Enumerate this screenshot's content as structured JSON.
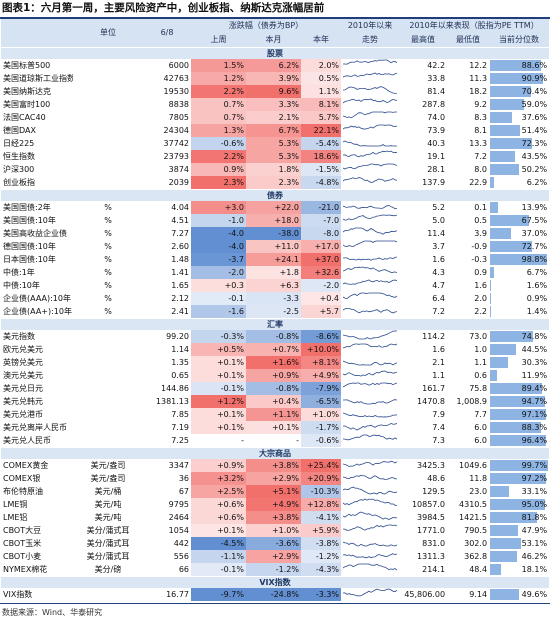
{
  "title": "图表1：六月第一周，主要风险资产中，创业板指、纳斯达克涨幅居前",
  "header": {
    "unit": "单位",
    "date": "6/8",
    "change": "涨跌幅（债券为BP）",
    "week": "上周",
    "month": "本月",
    "year": "本年",
    "trend": [
      "2010年以来",
      "走势"
    ],
    "perf": "2010年以来表现（股指为PE TTM）",
    "high": "最高值",
    "low": "最低值",
    "pct": "当前分位数"
  },
  "sections": [
    {
      "name": "股票",
      "rows": [
        {
          "name": "美国标普500",
          "value": "6000",
          "week": "1.5%",
          "month": "6.2%",
          "year": "2.0%",
          "high": "42.2",
          "low": "12.2",
          "pct": "88.6%"
        },
        {
          "name": "美国道琼斯工业指数",
          "value": "42763",
          "week": "1.2%",
          "month": "3.9%",
          "year": "0.5%",
          "high": "33.8",
          "low": "11.3",
          "pct": "90.9%"
        },
        {
          "name": "美国纳斯达克",
          "value": "19530",
          "week": "2.2%",
          "month": "9.6%",
          "year": "1.1%",
          "high": "81.4",
          "low": "18.2",
          "pct": "70.4%"
        },
        {
          "name": "美国富时100",
          "value": "8838",
          "week": "0.7%",
          "month": "3.3%",
          "year": "8.1%",
          "high": "287.8",
          "low": "9.2",
          "pct": "59.0%"
        },
        {
          "name": "法国CAC40",
          "value": "7805",
          "week": "0.7%",
          "month": "2.1%",
          "year": "5.7%",
          "high": "74.0",
          "low": "8.3",
          "pct": "37.6%"
        },
        {
          "name": "德国DAX",
          "value": "24304",
          "week": "1.3%",
          "month": "6.7%",
          "year": "22.1%",
          "high": "73.9",
          "low": "8.1",
          "pct": "51.4%"
        },
        {
          "name": "日经225",
          "value": "37742",
          "week": "-0.6%",
          "month": "5.3%",
          "year": "-5.4%",
          "high": "40.3",
          "low": "13.3",
          "pct": "72.3%"
        },
        {
          "name": "恒生指数",
          "value": "23793",
          "week": "2.2%",
          "month": "5.3%",
          "year": "18.6%",
          "high": "19.1",
          "low": "7.2",
          "pct": "43.5%"
        },
        {
          "name": "沪深300",
          "value": "3874",
          "week": "0.9%",
          "month": "1.8%",
          "year": "-1.5%",
          "high": "28.1",
          "low": "8.0",
          "pct": "50.2%"
        },
        {
          "name": "创业板指",
          "value": "2039",
          "week": "2.3%",
          "month": "2.3%",
          "year": "-4.8%",
          "high": "137.9",
          "low": "22.9",
          "pct": "6.2%"
        }
      ]
    },
    {
      "name": "债券",
      "rows": [
        {
          "name": "美国国债:2年",
          "unit": "%",
          "value": "4.04",
          "week": "+3.0",
          "month": "+22.0",
          "year": "-21.0",
          "high": "5.2",
          "low": "0.1",
          "pct": "13.9%"
        },
        {
          "name": "美国国债:10年",
          "unit": "%",
          "value": "4.51",
          "week": "-1.0",
          "month": "+18.0",
          "year": "-7.0",
          "high": "5.0",
          "low": "0.5",
          "pct": "67.5%"
        },
        {
          "name": "美国高收益企业债",
          "unit": "%",
          "value": "7.27",
          "week": "-4.0",
          "month": "-38.0",
          "year": "-8.0",
          "high": "11.4",
          "low": "3.9",
          "pct": "37.0%"
        },
        {
          "name": "德国国债:10年",
          "unit": "%",
          "value": "2.60",
          "week": "-4.0",
          "month": "+11.0",
          "year": "+17.0",
          "high": "3.7",
          "low": "-0.9",
          "pct": "72.7%"
        },
        {
          "name": "日本国债:10年",
          "unit": "%",
          "value": "1.48",
          "week": "-3.7",
          "month": "+24.1",
          "year": "+37.0",
          "high": "1.6",
          "low": "-0.3",
          "pct": "98.8%"
        },
        {
          "name": "中债:1年",
          "unit": "%",
          "value": "1.41",
          "week": "-2.0",
          "month": "+1.8",
          "year": "+32.6",
          "high": "4.3",
          "low": "0.9",
          "pct": "6.7%"
        },
        {
          "name": "中债:10年",
          "unit": "%",
          "value": "1.65",
          "week": "+0.3",
          "month": "+6.3",
          "year": "-2.0",
          "high": "4.7",
          "low": "1.6",
          "pct": "1.6%"
        },
        {
          "name": "企业债(AAA):10年",
          "unit": "%",
          "value": "2.12",
          "week": "-0.1",
          "month": "-3.3",
          "year": "+0.4",
          "high": "6.4",
          "low": "2.0",
          "pct": "0.9%"
        },
        {
          "name": "企业债(AA+):10年",
          "unit": "%",
          "value": "2.41",
          "week": "-1.6",
          "month": "-2.5",
          "year": "+5.7",
          "high": "7.2",
          "low": "2.2",
          "pct": "1.4%"
        }
      ]
    },
    {
      "name": "汇率",
      "rows": [
        {
          "name": "美元指数",
          "value": "99.20",
          "week": "-0.3%",
          "month": "-0.8%",
          "year": "-8.6%",
          "high": "114.2",
          "low": "73.0",
          "pct": "74.8%"
        },
        {
          "name": "欧元兑美元",
          "value": "1.14",
          "week": "+0.5%",
          "month": "+0.7%",
          "year": "+10.0%",
          "high": "1.6",
          "low": "1.0",
          "pct": "44.5%"
        },
        {
          "name": "英镑兑美元",
          "value": "1.35",
          "week": "+0.1%",
          "month": "+1.6%",
          "year": "+8.1%",
          "high": "2.1",
          "low": "1.1",
          "pct": "30.3%"
        },
        {
          "name": "澳元兑美元",
          "value": "0.65",
          "week": "+0.1%",
          "month": "+0.9%",
          "year": "+4.9%",
          "high": "1.1",
          "low": "0.6",
          "pct": "11.9%"
        },
        {
          "name": "美元兑日元",
          "value": "144.86",
          "week": "-0.1%",
          "month": "-0.8%",
          "year": "-7.9%",
          "high": "161.7",
          "low": "75.8",
          "pct": "89.4%"
        },
        {
          "name": "美元兑韩元",
          "value": "1381.13",
          "week": "+1.2%",
          "month": "+0.4%",
          "year": "-6.5%",
          "high": "1470.8",
          "low": "1,008.9",
          "pct": "94.7%"
        },
        {
          "name": "美元兑港币",
          "value": "7.85",
          "week": "+0.1%",
          "month": "+1.1%",
          "year": "+1.0%",
          "high": "7.9",
          "low": "7.7",
          "pct": "97.1%"
        },
        {
          "name": "美元兑离岸人民币",
          "value": "7.19",
          "week": "+0.1%",
          "month": "+0.1%",
          "year": "-1.7%",
          "high": "7.4",
          "low": "6.0",
          "pct": "88.3%"
        },
        {
          "name": "美元兑人民币",
          "value": "7.25",
          "week": "-",
          "month": "-",
          "year": "-0.6%",
          "high": "7.3",
          "low": "6.0",
          "pct": "96.4%"
        }
      ]
    },
    {
      "name": "大宗商品",
      "rows": [
        {
          "name": "COMEX黄金",
          "unit": "美元/盎司",
          "value": "3347",
          "week": "+0.9%",
          "month": "+3.8%",
          "year": "+25.4%",
          "high": "3425.3",
          "low": "1049.6",
          "pct": "99.7%"
        },
        {
          "name": "COMEX银",
          "unit": "美元/盎司",
          "value": "36",
          "week": "+3.2%",
          "month": "+2.9%",
          "year": "+20.9%",
          "high": "48.6",
          "low": "11.8",
          "pct": "97.2%"
        },
        {
          "name": "布伦特原油",
          "unit": "美元/桶",
          "value": "67",
          "week": "+2.5%",
          "month": "+5.1%",
          "year": "-10.3%",
          "high": "129.5",
          "low": "23.0",
          "pct": "33.1%"
        },
        {
          "name": "LME铜",
          "unit": "美元/吨",
          "value": "9795",
          "week": "+0.6%",
          "month": "+4.9%",
          "year": "+12.8%",
          "high": "10857.0",
          "low": "4310.5",
          "pct": "95.0%"
        },
        {
          "name": "LME铝",
          "unit": "美元/吨",
          "value": "2464",
          "week": "+0.6%",
          "month": "+3.8%",
          "year": "-4.1%",
          "high": "3984.5",
          "low": "1421.5",
          "pct": "81.8%"
        },
        {
          "name": "CBOT大豆",
          "unit": "美分/蒲式耳",
          "value": "1054",
          "week": "+0.1%",
          "month": "+1.0%",
          "year": "+5.9%",
          "high": "1771.0",
          "low": "790.5",
          "pct": "47.9%"
        },
        {
          "name": "CBOT玉米",
          "unit": "美分/蒲式耳",
          "value": "442",
          "week": "-4.5%",
          "month": "-3.6%",
          "year": "-3.8%",
          "high": "831.0",
          "low": "302.0",
          "pct": "53.1%"
        },
        {
          "name": "CBOT小麦",
          "unit": "美分/蒲式耳",
          "value": "556",
          "week": "-1.1%",
          "month": "+2.9%",
          "year": "-1.2%",
          "high": "1311.3",
          "low": "362.8",
          "pct": "46.2%"
        },
        {
          "name": "NYMEX棉花",
          "unit": "美分/磅",
          "value": "66",
          "week": "-0.1%",
          "month": "-1.2%",
          "year": "-4.3%",
          "high": "214.1",
          "low": "48.4",
          "pct": "18.1%"
        }
      ]
    },
    {
      "name": "VIX指数",
      "rows": [
        {
          "name": "VIX指数",
          "value": "16.77",
          "week": "-9.7%",
          "month": "-24.8%",
          "year": "-3.3%",
          "high": "45,806.00",
          "low": "9.14",
          "pct": "49.6%"
        }
      ]
    }
  ],
  "source": "数据来源：Wind、华泰研究"
}
